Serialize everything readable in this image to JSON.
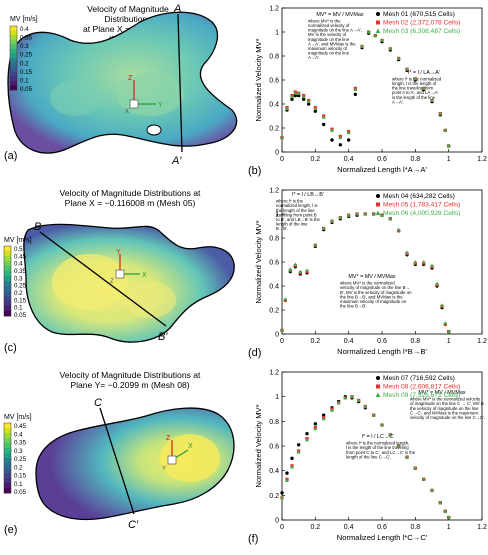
{
  "contours": [
    {
      "panel_label": "(a)",
      "title_lines": [
        "Velocity of Magnitude",
        "Distributions",
        "at Plane X = 0.03007 m",
        "(Mesh 02)"
      ],
      "colorbar_title": "MV [m/s]",
      "colorbar_ticks": [
        "0.4",
        "0.35",
        "0.3",
        "0.25",
        "0.2",
        "0.15",
        "0.1",
        "0.05"
      ],
      "line_start": "A",
      "line_end": "A′",
      "axes": {
        "up": "Z",
        "side": "Y",
        "out": "X"
      }
    },
    {
      "panel_label": "(c)",
      "title_lines": [
        "Velocity of Magnitude Distributions  at",
        "Plane X = −0.116008 m (Mesh 05)"
      ],
      "colorbar_title": "MV [m/s]",
      "colorbar_ticks": [
        "0.5",
        "0.45",
        "0.4",
        "0.35",
        "0.3",
        "0.25",
        "0.2",
        "0.15",
        "0.1",
        "0.05"
      ],
      "line_start": "B",
      "line_end": "B′",
      "axes": {
        "up": "Y",
        "side": "X",
        "out": "Z"
      }
    },
    {
      "panel_label": "(e)",
      "title_lines": [
        "Velocity of Magnitude Distributions  at",
        "Plane Y= −0.2099  m (Mesh 08)"
      ],
      "colorbar_title": "MV [m/s]",
      "colorbar_ticks": [
        "0.45",
        "0.4",
        "0.35",
        "0.3",
        "0.25",
        "0.2",
        "0.15",
        "0.1",
        "0.05"
      ],
      "line_start": "C",
      "line_end": "C′",
      "axes": {
        "up": "Z",
        "side": "X",
        "out": "Y"
      }
    }
  ],
  "chart_data": [
    {
      "type": "scatter",
      "panel_label": "(b)",
      "xlabel": "Normalized Length l*A→A′",
      "ylabel": "Normalized Velocity MV*",
      "xlim": [
        0,
        1.2
      ],
      "ylim": [
        0,
        1.2
      ],
      "xticks": [
        "0",
        "0.2",
        "0.4",
        "0.6",
        "0.8",
        "1",
        "1.2"
      ],
      "yticks": [
        "0",
        "0.2",
        "0.4",
        "0.6",
        "0.8",
        "1",
        "1.2"
      ],
      "legend_position": "top-right",
      "annotations": [
        [
          "MV* = MV / MVMax",
          "where  MV* is the",
          "normalized velocity of",
          "magnitude on the line A→A′,",
          "MV is the velocity of",
          "magnitude on the line",
          "A→A′, and MVMax is the",
          "maximum velocity of",
          "magnitude on the line",
          "A→A′."
        ],
        [
          "l* = l / LA→A′",
          "where l* is the normalized",
          "length, l is the length of",
          "the line traveling from",
          "point A to A′, and LA→A′",
          "is the length of the line",
          "A→A′."
        ]
      ],
      "x": [
        0,
        0.03,
        0.06,
        0.08,
        0.1,
        0.13,
        0.16,
        0.2,
        0.25,
        0.3,
        0.35,
        0.4,
        0.44,
        0.48,
        0.52,
        0.56,
        0.6,
        0.65,
        0.7,
        0.75,
        0.8,
        0.85,
        0.9,
        0.95,
        0.98,
        1.0
      ],
      "series": [
        {
          "name": "Mesh 01 (670,515 Cells)",
          "color": "#000000",
          "values": [
            0.12,
            0.35,
            0.44,
            0.47,
            0.47,
            0.44,
            0.4,
            0.34,
            0.23,
            0.1,
            0.06,
            0.1,
            0.48,
            0.87,
            0.99,
            0.97,
            0.92,
            0.85,
            0.77,
            0.68,
            0.6,
            0.52,
            0.42,
            0.31,
            0.18,
            0.05
          ]
        },
        {
          "name": "Mesh 02 (2,372,078 Cells)",
          "color": "#e8302a",
          "values": [
            0.12,
            0.37,
            0.47,
            0.5,
            0.49,
            0.47,
            0.43,
            0.37,
            0.3,
            0.19,
            0.13,
            0.17,
            0.53,
            0.88,
            1.0,
            0.97,
            0.93,
            0.86,
            0.78,
            0.69,
            0.61,
            0.53,
            0.43,
            0.32,
            0.18,
            0.05
          ]
        },
        {
          "name": "Mesh 03 (6,308,487 Cells)",
          "color": "#3cae4a",
          "values": [
            0.12,
            0.36,
            0.46,
            0.49,
            0.49,
            0.46,
            0.42,
            0.36,
            0.29,
            0.18,
            0.12,
            0.16,
            0.52,
            0.88,
            1.0,
            0.97,
            0.93,
            0.86,
            0.78,
            0.69,
            0.61,
            0.53,
            0.43,
            0.32,
            0.18,
            0.05
          ]
        }
      ]
    },
    {
      "type": "scatter",
      "panel_label": "(d)",
      "xlabel": "Normalized Length l*B→B′",
      "ylabel": "Normalized Velocity MV*",
      "xlim": [
        0,
        1.2
      ],
      "ylim": [
        0,
        1.2
      ],
      "xticks": [
        "0",
        "0.2",
        "0.4",
        "0.6",
        "0.8",
        "1",
        "1.2"
      ],
      "yticks": [
        "0",
        "0.2",
        "0.4",
        "0.6",
        "0.8",
        "1",
        "1.2"
      ],
      "legend_position": "top-right",
      "annotations": [
        [
          "l* = l / LB→B′",
          "where   l*   is   the",
          "normalized length, l is",
          "the length of the line",
          "traveling from point B",
          "to B′, and LB→B′ is the",
          "length of the line",
          "B→B′."
        ],
        [
          "MV* = MV / MVMax",
          "where  MV* is the normalized",
          "velocity of magnitude on the line B→",
          "B′, MV is the velocity of magnitude on",
          "the line B→B′, and MVMax is the",
          "maximum velocity of magnitude on",
          "the line B→B′."
        ]
      ],
      "x": [
        0,
        0.02,
        0.05,
        0.08,
        0.11,
        0.15,
        0.2,
        0.25,
        0.3,
        0.35,
        0.4,
        0.45,
        0.5,
        0.55,
        0.6,
        0.65,
        0.7,
        0.75,
        0.8,
        0.85,
        0.9,
        0.93,
        0.96,
        0.98,
        1.0
      ],
      "series": [
        {
          "name": "Mesh 04 (634,282 Cells)",
          "color": "#000000",
          "values": [
            0.03,
            0.28,
            0.52,
            0.56,
            0.5,
            0.51,
            0.73,
            0.87,
            0.93,
            0.96,
            0.98,
            0.99,
            1.0,
            1.0,
            0.99,
            0.96,
            0.86,
            0.66,
            0.58,
            0.58,
            0.55,
            0.4,
            0.22,
            0.08,
            0.02
          ]
        },
        {
          "name": "Mesh 05 (1,783,417 Cells)",
          "color": "#e8302a",
          "values": [
            0.03,
            0.28,
            0.53,
            0.57,
            0.51,
            0.52,
            0.74,
            0.88,
            0.94,
            0.97,
            0.99,
            1.0,
            1.0,
            1.0,
            0.99,
            0.96,
            0.86,
            0.67,
            0.59,
            0.59,
            0.56,
            0.41,
            0.23,
            0.08,
            0.02
          ]
        },
        {
          "name": "Mesh 06 (4,000,928 Cells)",
          "color": "#3cae4a",
          "values": [
            0.03,
            0.29,
            0.54,
            0.58,
            0.52,
            0.53,
            0.74,
            0.88,
            0.94,
            0.97,
            0.99,
            1.0,
            1.0,
            1.0,
            0.99,
            0.96,
            0.87,
            0.68,
            0.6,
            0.6,
            0.57,
            0.42,
            0.24,
            0.09,
            0.02
          ]
        }
      ]
    },
    {
      "type": "scatter",
      "panel_label": "(f)",
      "xlabel": "Normalized Length l*C→C′",
      "ylabel": "Normalized Velocity MV*",
      "xlim": [
        0,
        1.2
      ],
      "ylim": [
        0,
        1.2
      ],
      "xticks": [
        "0",
        "0.2",
        "0.4",
        "0.6",
        "0.8",
        "1",
        "1.2"
      ],
      "yticks": [
        "0",
        "0.2",
        "0.4",
        "0.6",
        "0.8",
        "1",
        "1.2"
      ],
      "legend_position": "top-right",
      "annotations": [
        [
          "l* = l / LC→C′",
          "where l* is the normalized length,",
          "l is the length of the line traveling",
          "from point C to C′, and LC→C′ is the",
          "length of the line C→C′."
        ],
        [
          "MV* = MV / MVMax",
          "where MV* is the normalized velocity",
          "of magnitude on the line C → C′, MV is",
          "the velocity of magnitude on the line",
          "C→C′, and MVMax is the maximum",
          "velocity of magnitude on the line C→C′."
        ]
      ],
      "x": [
        0,
        0.03,
        0.06,
        0.1,
        0.15,
        0.2,
        0.25,
        0.3,
        0.34,
        0.38,
        0.42,
        0.46,
        0.5,
        0.55,
        0.6,
        0.65,
        0.7,
        0.75,
        0.8,
        0.85,
        0.9,
        0.95,
        0.98,
        1.0
      ],
      "series": [
        {
          "name": "Mesh 07 (716,592 Cells)",
          "color": "#000000",
          "values": [
            0.22,
            0.38,
            0.5,
            0.61,
            0.7,
            0.78,
            0.85,
            0.91,
            0.96,
            1.0,
            0.99,
            0.96,
            0.91,
            0.85,
            0.77,
            0.69,
            0.6,
            0.51,
            0.42,
            0.33,
            0.24,
            0.14,
            0.07,
            0.02
          ]
        },
        {
          "name": "Mesh 08 (2,606,817 Cells)",
          "color": "#e8302a",
          "values": [
            0.18,
            0.33,
            0.44,
            0.56,
            0.66,
            0.75,
            0.83,
            0.9,
            0.95,
            0.99,
            1.0,
            0.97,
            0.92,
            0.85,
            0.77,
            0.69,
            0.6,
            0.51,
            0.42,
            0.33,
            0.24,
            0.14,
            0.07,
            0.02
          ]
        },
        {
          "name": "Mesh 09 (7,526,671 Cells)",
          "color": "#3cae4a",
          "values": [
            0.18,
            0.32,
            0.43,
            0.55,
            0.65,
            0.74,
            0.82,
            0.89,
            0.95,
            0.99,
            1.0,
            0.97,
            0.92,
            0.85,
            0.77,
            0.69,
            0.6,
            0.51,
            0.42,
            0.33,
            0.24,
            0.14,
            0.07,
            0.02
          ]
        }
      ]
    }
  ]
}
